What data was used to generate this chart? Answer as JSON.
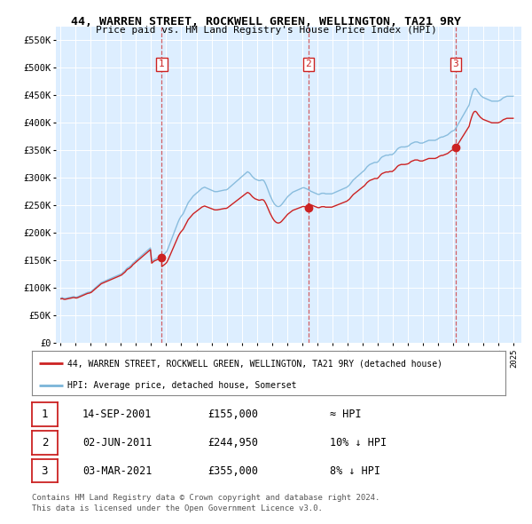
{
  "title": "44, WARREN STREET, ROCKWELL GREEN, WELLINGTON, TA21 9RY",
  "subtitle": "Price paid vs. HM Land Registry's House Price Index (HPI)",
  "legend_line1": "44, WARREN STREET, ROCKWELL GREEN, WELLINGTON, TA21 9RY (detached house)",
  "legend_line2": "HPI: Average price, detached house, Somerset",
  "footer1": "Contains HM Land Registry data © Crown copyright and database right 2024.",
  "footer2": "This data is licensed under the Open Government Licence v3.0.",
  "transactions": [
    {
      "num": 1,
      "date": "14-SEP-2001",
      "price": "£155,000",
      "hpi": "≈ HPI"
    },
    {
      "num": 2,
      "date": "02-JUN-2011",
      "price": "£244,950",
      "hpi": "10% ↓ HPI"
    },
    {
      "num": 3,
      "date": "03-MAR-2021",
      "price": "£355,000",
      "hpi": "8% ↓ HPI"
    }
  ],
  "sale_prices": [
    155000,
    244950,
    355000
  ],
  "sale_year_floats": [
    2001.708,
    2011.414,
    2021.163
  ],
  "hpi_color": "#7ab4d8",
  "price_color": "#cc2222",
  "vline_color": "#cc2222",
  "fig_bg": "#ffffff",
  "plot_bg": "#ddeeff",
  "grid_color": "#ffffff",
  "ylim": [
    0,
    575000
  ],
  "yticks": [
    0,
    50000,
    100000,
    150000,
    200000,
    250000,
    300000,
    350000,
    400000,
    450000,
    500000,
    550000
  ],
  "ytick_labels": [
    "£0",
    "£50K",
    "£100K",
    "£150K",
    "£200K",
    "£250K",
    "£300K",
    "£350K",
    "£400K",
    "£450K",
    "£500K",
    "£550K"
  ],
  "hpi_data_x": [
    1995.042,
    1995.125,
    1995.208,
    1995.292,
    1995.375,
    1995.458,
    1995.542,
    1995.625,
    1995.708,
    1995.792,
    1995.875,
    1995.958,
    1996.042,
    1996.125,
    1996.208,
    1996.292,
    1996.375,
    1996.458,
    1996.542,
    1996.625,
    1996.708,
    1996.792,
    1996.875,
    1996.958,
    1997.042,
    1997.125,
    1997.208,
    1997.292,
    1997.375,
    1997.458,
    1997.542,
    1997.625,
    1997.708,
    1997.792,
    1997.875,
    1997.958,
    1998.042,
    1998.125,
    1998.208,
    1998.292,
    1998.375,
    1998.458,
    1998.542,
    1998.625,
    1998.708,
    1998.792,
    1998.875,
    1998.958,
    1999.042,
    1999.125,
    1999.208,
    1999.292,
    1999.375,
    1999.458,
    1999.542,
    1999.625,
    1999.708,
    1999.792,
    1999.875,
    1999.958,
    2000.042,
    2000.125,
    2000.208,
    2000.292,
    2000.375,
    2000.458,
    2000.542,
    2000.625,
    2000.708,
    2000.792,
    2000.875,
    2000.958,
    2001.042,
    2001.125,
    2001.208,
    2001.292,
    2001.375,
    2001.458,
    2001.542,
    2001.625,
    2001.708,
    2001.792,
    2001.875,
    2001.958,
    2002.042,
    2002.125,
    2002.208,
    2002.292,
    2002.375,
    2002.458,
    2002.542,
    2002.625,
    2002.708,
    2002.792,
    2002.875,
    2002.958,
    2003.042,
    2003.125,
    2003.208,
    2003.292,
    2003.375,
    2003.458,
    2003.542,
    2003.625,
    2003.708,
    2003.792,
    2003.875,
    2003.958,
    2004.042,
    2004.125,
    2004.208,
    2004.292,
    2004.375,
    2004.458,
    2004.542,
    2004.625,
    2004.708,
    2004.792,
    2004.875,
    2004.958,
    2005.042,
    2005.125,
    2005.208,
    2005.292,
    2005.375,
    2005.458,
    2005.542,
    2005.625,
    2005.708,
    2005.792,
    2005.875,
    2005.958,
    2006.042,
    2006.125,
    2006.208,
    2006.292,
    2006.375,
    2006.458,
    2006.542,
    2006.625,
    2006.708,
    2006.792,
    2006.875,
    2006.958,
    2007.042,
    2007.125,
    2007.208,
    2007.292,
    2007.375,
    2007.458,
    2007.542,
    2007.625,
    2007.708,
    2007.792,
    2007.875,
    2007.958,
    2008.042,
    2008.125,
    2008.208,
    2008.292,
    2008.375,
    2008.458,
    2008.542,
    2008.625,
    2008.708,
    2008.792,
    2008.875,
    2008.958,
    2009.042,
    2009.125,
    2009.208,
    2009.292,
    2009.375,
    2009.458,
    2009.542,
    2009.625,
    2009.708,
    2009.792,
    2009.875,
    2009.958,
    2010.042,
    2010.125,
    2010.208,
    2010.292,
    2010.375,
    2010.458,
    2010.542,
    2010.625,
    2010.708,
    2010.792,
    2010.875,
    2010.958,
    2011.042,
    2011.125,
    2011.208,
    2011.292,
    2011.375,
    2011.458,
    2011.542,
    2011.625,
    2011.708,
    2011.792,
    2011.875,
    2011.958,
    2012.042,
    2012.125,
    2012.208,
    2012.292,
    2012.375,
    2012.458,
    2012.542,
    2012.625,
    2012.708,
    2012.792,
    2012.875,
    2012.958,
    2013.042,
    2013.125,
    2013.208,
    2013.292,
    2013.375,
    2013.458,
    2013.542,
    2013.625,
    2013.708,
    2013.792,
    2013.875,
    2013.958,
    2014.042,
    2014.125,
    2014.208,
    2014.292,
    2014.375,
    2014.458,
    2014.542,
    2014.625,
    2014.708,
    2014.792,
    2014.875,
    2014.958,
    2015.042,
    2015.125,
    2015.208,
    2015.292,
    2015.375,
    2015.458,
    2015.542,
    2015.625,
    2015.708,
    2015.792,
    2015.875,
    2015.958,
    2016.042,
    2016.125,
    2016.208,
    2016.292,
    2016.375,
    2016.458,
    2016.542,
    2016.625,
    2016.708,
    2016.792,
    2016.875,
    2016.958,
    2017.042,
    2017.125,
    2017.208,
    2017.292,
    2017.375,
    2017.458,
    2017.542,
    2017.625,
    2017.708,
    2017.792,
    2017.875,
    2017.958,
    2018.042,
    2018.125,
    2018.208,
    2018.292,
    2018.375,
    2018.458,
    2018.542,
    2018.625,
    2018.708,
    2018.792,
    2018.875,
    2018.958,
    2019.042,
    2019.125,
    2019.208,
    2019.292,
    2019.375,
    2019.458,
    2019.542,
    2019.625,
    2019.708,
    2019.792,
    2019.875,
    2019.958,
    2020.042,
    2020.125,
    2020.208,
    2020.292,
    2020.375,
    2020.458,
    2020.542,
    2020.625,
    2020.708,
    2020.792,
    2020.875,
    2020.958,
    2021.042,
    2021.125,
    2021.208,
    2021.292,
    2021.375,
    2021.458,
    2021.542,
    2021.625,
    2021.708,
    2021.792,
    2021.875,
    2021.958,
    2022.042,
    2022.125,
    2022.208,
    2022.292,
    2022.375,
    2022.458,
    2022.542,
    2022.625,
    2022.708,
    2022.792,
    2022.875,
    2022.958,
    2023.042,
    2023.125,
    2023.208,
    2023.292,
    2023.375,
    2023.458,
    2023.542,
    2023.625,
    2023.708,
    2023.792,
    2023.875,
    2023.958,
    2024.042,
    2024.125,
    2024.208,
    2024.292,
    2024.375,
    2024.458,
    2024.542,
    2024.625,
    2024.708,
    2024.792,
    2024.875,
    2024.958
  ],
  "hpi_data_y": [
    82000,
    82500,
    81500,
    81000,
    81500,
    82000,
    82500,
    83000,
    83500,
    84000,
    84500,
    84000,
    83500,
    84000,
    85000,
    86000,
    87000,
    88000,
    89000,
    90000,
    91000,
    92000,
    92500,
    93000,
    94000,
    96000,
    98000,
    100000,
    102000,
    104000,
    106000,
    108000,
    110000,
    111000,
    112000,
    113000,
    114000,
    115000,
    116000,
    117000,
    118000,
    119000,
    120000,
    121000,
    122000,
    123000,
    124000,
    125000,
    126000,
    128000,
    130000,
    132000,
    135000,
    137000,
    138000,
    140000,
    142000,
    145000,
    147000,
    149000,
    151000,
    153000,
    155000,
    157000,
    159000,
    161000,
    163000,
    165000,
    167000,
    169000,
    171000,
    173000,
    148000,
    150000,
    152000,
    153000,
    154000,
    155000,
    156000,
    157000,
    158000,
    160000,
    162000,
    164000,
    167000,
    172000,
    178000,
    184000,
    190000,
    196000,
    202000,
    208000,
    214000,
    220000,
    225000,
    229000,
    232000,
    235000,
    240000,
    245000,
    250000,
    255000,
    258000,
    261000,
    264000,
    267000,
    269000,
    271000,
    273000,
    275000,
    277000,
    279000,
    281000,
    282000,
    283000,
    282000,
    281000,
    280000,
    279000,
    278000,
    277000,
    276000,
    275000,
    275000,
    275000,
    275500,
    276000,
    276500,
    277000,
    277500,
    278000,
    278000,
    279000,
    281000,
    283000,
    285000,
    287000,
    289000,
    291000,
    293000,
    295000,
    297000,
    299000,
    301000,
    303000,
    305000,
    307000,
    309000,
    311000,
    310000,
    308000,
    305000,
    302000,
    300000,
    298000,
    297000,
    296000,
    295000,
    295000,
    296000,
    296000,
    295000,
    291000,
    286000,
    280000,
    274000,
    268000,
    263000,
    258000,
    254000,
    251000,
    249000,
    248000,
    248000,
    249000,
    251000,
    254000,
    257000,
    260000,
    263000,
    266000,
    268000,
    270000,
    272000,
    274000,
    275000,
    276000,
    277000,
    278000,
    279000,
    280000,
    281000,
    282000,
    282000,
    281000,
    280000,
    279000,
    278000,
    276000,
    275000,
    274000,
    273000,
    272000,
    271000,
    270000,
    270000,
    271000,
    272000,
    272000,
    272000,
    271000,
    271000,
    271000,
    271000,
    271000,
    271000,
    272000,
    273000,
    274000,
    275000,
    276000,
    277000,
    278000,
    279000,
    280000,
    281000,
    282000,
    283000,
    285000,
    287000,
    290000,
    293000,
    296000,
    298000,
    300000,
    302000,
    304000,
    306000,
    308000,
    310000,
    312000,
    314000,
    317000,
    320000,
    322000,
    324000,
    325000,
    326000,
    327000,
    328000,
    328000,
    328000,
    330000,
    333000,
    336000,
    338000,
    339000,
    340000,
    341000,
    341000,
    341000,
    342000,
    342000,
    342000,
    344000,
    346000,
    349000,
    352000,
    354000,
    355000,
    356000,
    356000,
    356000,
    356000,
    356500,
    357000,
    358000,
    360000,
    362000,
    363000,
    364000,
    365000,
    365000,
    365000,
    364000,
    363000,
    363000,
    363000,
    364000,
    365000,
    366000,
    367000,
    368000,
    368000,
    368000,
    368000,
    368000,
    368000,
    369000,
    370000,
    372000,
    373000,
    374000,
    374000,
    375000,
    376000,
    377000,
    378000,
    380000,
    382000,
    384000,
    385000,
    386000,
    388000,
    392000,
    396000,
    400000,
    404000,
    408000,
    412000,
    416000,
    420000,
    424000,
    428000,
    432000,
    442000,
    450000,
    457000,
    461000,
    462000,
    460000,
    456000,
    453000,
    450000,
    448000,
    446000,
    445000,
    444000,
    443000,
    442000,
    441000,
    440000,
    439000,
    439000,
    439000,
    439000,
    439000,
    439000,
    440000,
    441000,
    443000,
    445000,
    446000,
    447000,
    448000,
    448000,
    448000,
    448000,
    448000,
    448000
  ]
}
